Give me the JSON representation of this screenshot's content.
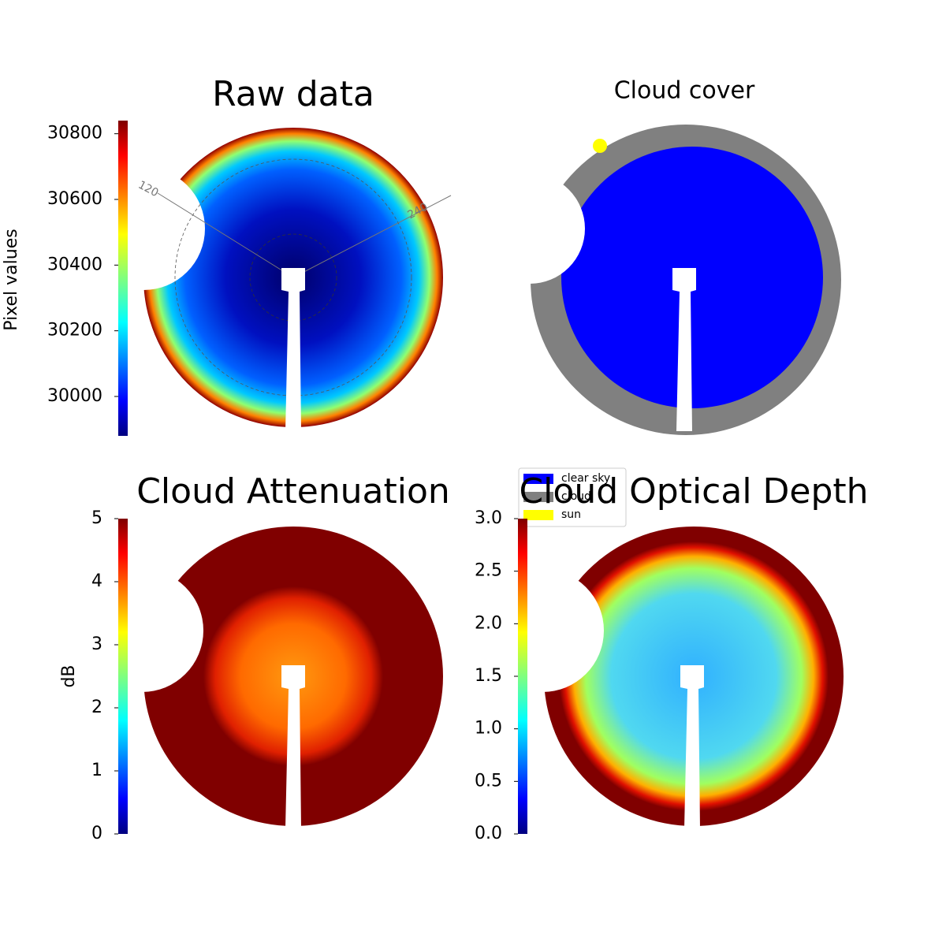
{
  "chart_data": [
    {
      "type": "image",
      "title": "Raw data",
      "colormap": "jet",
      "colorbar_label": "Pixel values",
      "ylim": [
        29880,
        30840
      ],
      "yticks": [
        30000,
        30200,
        30400,
        30600,
        30800
      ],
      "polar_labels": [
        "120",
        "240"
      ]
    },
    {
      "type": "image",
      "title": "Cloud cover",
      "legend": [
        {
          "name": "clear sky",
          "color": "#0000ff"
        },
        {
          "name": "cloud",
          "color": "#808080"
        },
        {
          "name": "sun",
          "color": "#ffff00"
        }
      ]
    },
    {
      "type": "image",
      "title": "Cloud Attenuation",
      "colormap": "jet",
      "colorbar_label": "dB",
      "ylim": [
        0,
        5
      ],
      "yticks": [
        0,
        1,
        2,
        3,
        4,
        5
      ]
    },
    {
      "type": "image",
      "title": "Cloud Optical Depth",
      "colormap": "jet",
      "ylim": [
        0,
        3
      ],
      "yticks": [
        {
          "value": 0,
          "label": "0.0"
        },
        0.5,
        {
          "value": 1,
          "label": "1.0"
        },
        1.5,
        {
          "value": 2,
          "label": "2.0"
        },
        2.5,
        {
          "value": 3,
          "label": "3.0"
        }
      ]
    }
  ]
}
